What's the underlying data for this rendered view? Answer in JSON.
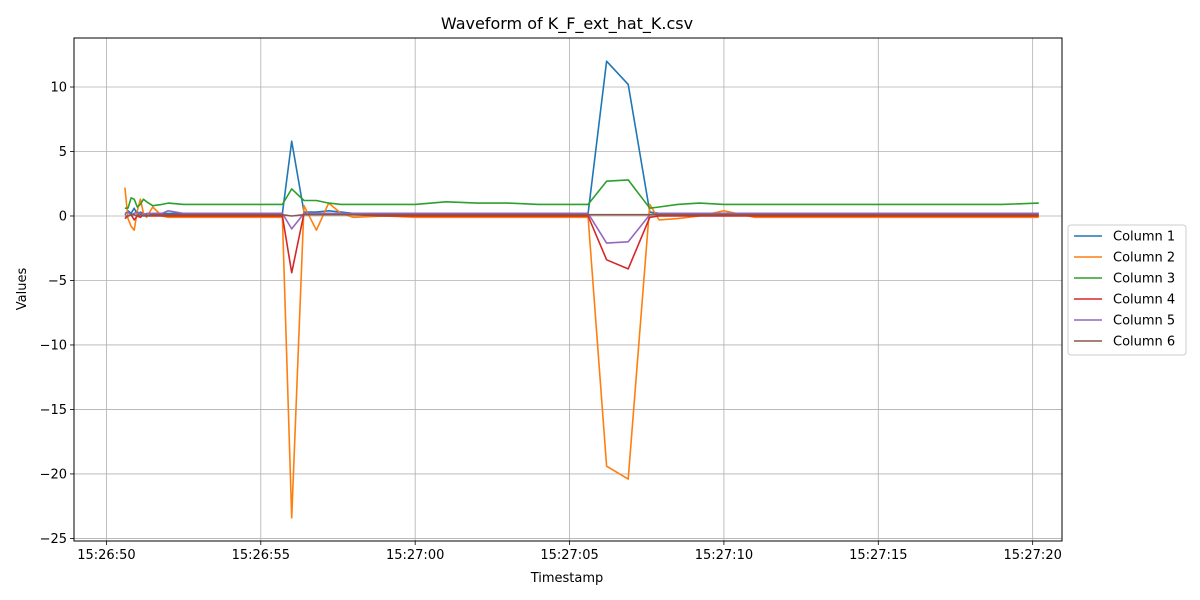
{
  "chart_data": {
    "type": "line",
    "title": "Waveform of K_F_ext_hat_K.csv",
    "xlabel": "Timestamp",
    "ylabel": "Values",
    "x_ticks": [
      "15:26:50",
      "15:26:55",
      "15:27:00",
      "15:27:05",
      "15:27:10",
      "15:27:15",
      "15:27:20"
    ],
    "x_tick_seconds": [
      0,
      5,
      10,
      15,
      20,
      25,
      30
    ],
    "xlim_seconds": [
      -1.05,
      30.95
    ],
    "y_ticks": [
      "10",
      "5",
      "0",
      "−5",
      "−10",
      "−15",
      "−20",
      "−25"
    ],
    "y_tick_values": [
      10,
      5,
      0,
      -5,
      -10,
      -15,
      -20,
      -25
    ],
    "ylim": [
      -25.2,
      13.8
    ],
    "grid": true,
    "legend_position": "center-right (outside)",
    "x": [
      0.6,
      0.7,
      0.8,
      0.9,
      1.0,
      1.1,
      1.2,
      1.3,
      1.5,
      1.8,
      2.0,
      2.5,
      3.0,
      4.0,
      5.0,
      5.7,
      6.0,
      6.4,
      6.8,
      7.2,
      7.6,
      8.0,
      9.0,
      10.0,
      11.0,
      12.0,
      13.0,
      14.0,
      15.0,
      15.6,
      16.2,
      16.9,
      17.6,
      17.9,
      18.5,
      19.2,
      20.0,
      21.0,
      22.0,
      23.0,
      24.0,
      25.0,
      26.0,
      27.0,
      28.0,
      29.0,
      30.2
    ],
    "series": [
      {
        "name": "Column 1",
        "color": "#1f77b4",
        "values": [
          0.1,
          0.4,
          0.2,
          0.6,
          0.1,
          0.3,
          0.2,
          0.1,
          0.2,
          0.2,
          0.2,
          0.2,
          0.2,
          0.2,
          0.2,
          0.2,
          5.8,
          0.3,
          0.3,
          0.4,
          0.3,
          0.2,
          0.2,
          0.2,
          0.2,
          0.2,
          0.2,
          0.2,
          0.2,
          0.2,
          12.0,
          10.2,
          0.3,
          0.2,
          0.2,
          0.2,
          0.2,
          0.2,
          0.2,
          0.2,
          0.2,
          0.2,
          0.2,
          0.2,
          0.2,
          0.2,
          0.2
        ]
      },
      {
        "name": "Column 2",
        "color": "#ff7f0e",
        "values": [
          2.2,
          -0.2,
          -0.8,
          -1.1,
          0.4,
          1.3,
          0.2,
          -0.1,
          0.7,
          0.0,
          -0.1,
          -0.1,
          -0.1,
          -0.1,
          -0.1,
          -0.1,
          -23.4,
          0.8,
          -1.1,
          1.0,
          0.2,
          -0.1,
          0.0,
          -0.1,
          -0.1,
          -0.1,
          -0.1,
          -0.1,
          -0.1,
          -0.1,
          -19.4,
          -20.4,
          0.9,
          -0.3,
          -0.2,
          0.0,
          0.4,
          -0.1,
          -0.1,
          -0.1,
          -0.1,
          -0.1,
          -0.1,
          -0.1,
          -0.1,
          -0.1,
          -0.1
        ]
      },
      {
        "name": "Column 3",
        "color": "#2ca02c",
        "values": [
          0.6,
          0.6,
          1.4,
          1.3,
          0.7,
          0.9,
          1.3,
          1.1,
          0.8,
          0.9,
          1.0,
          0.9,
          0.9,
          0.9,
          0.9,
          0.9,
          2.1,
          1.2,
          1.2,
          1.0,
          0.9,
          0.9,
          0.9,
          0.9,
          1.1,
          1.0,
          1.0,
          0.9,
          0.9,
          0.9,
          2.7,
          2.8,
          0.6,
          0.7,
          0.9,
          1.0,
          0.9,
          0.9,
          0.9,
          0.9,
          0.9,
          0.9,
          0.9,
          0.9,
          0.9,
          0.9,
          1.0
        ]
      },
      {
        "name": "Column 4",
        "color": "#d62728",
        "values": [
          -0.2,
          0.0,
          0.1,
          -0.3,
          0.0,
          -0.1,
          0.1,
          0.0,
          0.0,
          0.0,
          0.0,
          0.0,
          0.0,
          0.0,
          0.0,
          0.0,
          -4.4,
          0.2,
          0.1,
          0.2,
          0.1,
          0.1,
          0.0,
          0.0,
          0.0,
          0.0,
          0.0,
          0.0,
          0.0,
          0.0,
          -3.4,
          -4.1,
          -0.1,
          0.0,
          0.0,
          0.0,
          0.0,
          0.0,
          0.0,
          0.0,
          0.0,
          0.0,
          0.0,
          0.0,
          0.0,
          0.0,
          0.0
        ]
      },
      {
        "name": "Column 5",
        "color": "#9467bd",
        "values": [
          0.2,
          0.3,
          0.1,
          0.2,
          0.3,
          0.2,
          0.1,
          0.2,
          0.2,
          0.2,
          0.4,
          0.2,
          0.2,
          0.2,
          0.2,
          0.2,
          -1.0,
          0.2,
          0.2,
          0.2,
          0.2,
          0.2,
          0.2,
          0.2,
          0.2,
          0.2,
          0.2,
          0.2,
          0.2,
          0.2,
          -2.1,
          -2.0,
          0.1,
          0.2,
          0.2,
          0.2,
          0.2,
          0.2,
          0.2,
          0.2,
          0.2,
          0.2,
          0.2,
          0.2,
          0.2,
          0.2,
          0.2
        ]
      },
      {
        "name": "Column 6",
        "color": "#8c564b",
        "values": [
          0.0,
          0.0,
          0.1,
          0.1,
          0.0,
          0.1,
          0.0,
          0.0,
          0.1,
          0.1,
          0.1,
          0.1,
          0.1,
          0.1,
          0.1,
          0.1,
          0.0,
          0.1,
          0.1,
          0.1,
          0.1,
          0.1,
          0.1,
          0.1,
          0.1,
          0.1,
          0.1,
          0.1,
          0.1,
          0.1,
          0.1,
          0.1,
          0.1,
          0.1,
          0.1,
          0.1,
          0.1,
          0.1,
          0.1,
          0.1,
          0.1,
          0.1,
          0.1,
          0.1,
          0.1,
          0.1,
          0.1
        ]
      }
    ]
  }
}
